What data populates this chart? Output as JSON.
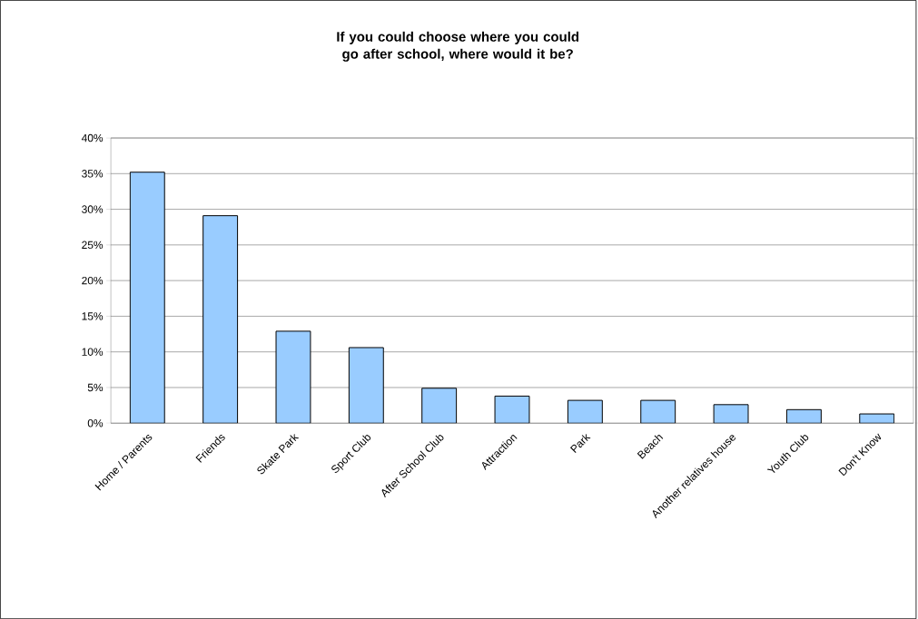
{
  "chart_data": {
    "type": "bar",
    "title": "If you could choose where you could go after school, where would it be?",
    "categories": [
      "Home / Parents",
      "Friends",
      "Skate Park",
      "Sport Club",
      "After School Club",
      "Attraction",
      "Park",
      "Beach",
      "Another relatives house",
      "Youth Club",
      "Don't Know"
    ],
    "values": [
      35.2,
      29.1,
      12.9,
      10.6,
      4.9,
      3.8,
      3.2,
      3.2,
      2.6,
      1.9,
      1.3
    ],
    "color": "#99ccff",
    "ylim": [
      0,
      40
    ],
    "yticks": [
      {
        "value": 0,
        "label": "0%"
      },
      {
        "value": 5,
        "label": "5%"
      },
      {
        "value": 10,
        "label": "10%"
      },
      {
        "value": 15,
        "label": "15%"
      },
      {
        "value": 20,
        "label": "20%"
      },
      {
        "value": 25,
        "label": "25%"
      },
      {
        "value": 30,
        "label": "30%"
      },
      {
        "value": 35,
        "label": "35%"
      },
      {
        "value": 40,
        "label": "40%"
      }
    ],
    "grid": "y"
  }
}
